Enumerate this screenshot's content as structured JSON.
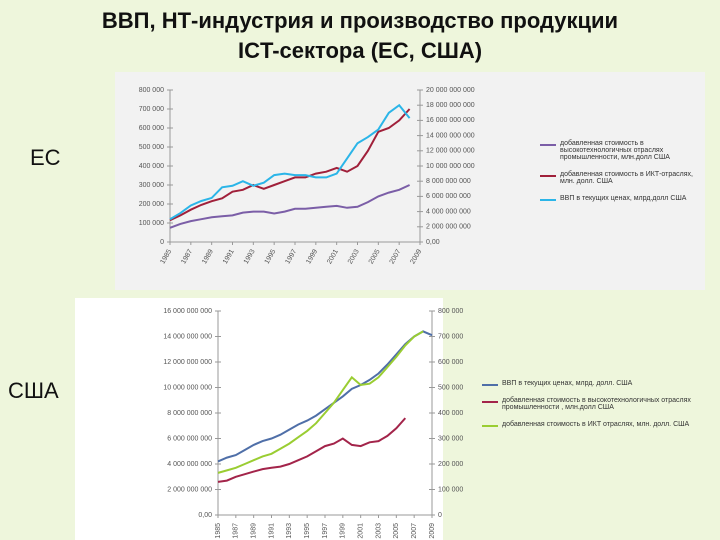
{
  "title": [
    "ВВП, НТ-индустрия  и производство продукции",
    "ICT-сектора (ЕС, США)"
  ],
  "chart_data": [
    {
      "type": "line",
      "region": "ЕС",
      "x": [
        1985,
        1986,
        1987,
        1988,
        1989,
        1990,
        1991,
        1992,
        1993,
        1994,
        1995,
        1996,
        1997,
        1998,
        1999,
        2000,
        2001,
        2002,
        2003,
        2004,
        2005,
        2006,
        2007,
        2008,
        2009
      ],
      "xlim": [
        1985,
        2009
      ],
      "xticks": [
        1985,
        1987,
        1989,
        1991,
        1993,
        1995,
        1997,
        1999,
        2001,
        2003,
        2005,
        2007,
        2009
      ],
      "ylim": [
        0,
        800000
      ],
      "yticks": [
        0,
        {
          "value": 100000,
          "label": "100 000"
        },
        {
          "value": 200000,
          "label": "200 000"
        },
        {
          "value": 300000,
          "label": "300 000"
        },
        {
          "value": 400000,
          "label": "400 000"
        },
        {
          "value": 500000,
          "label": "500 000"
        },
        {
          "value": 600000,
          "label": "600 000"
        },
        {
          "value": 700000,
          "label": "700 000"
        },
        {
          "value": 800000,
          "label": "800 000"
        }
      ],
      "y2lim": [
        0,
        20000000000
      ],
      "y2ticks": [
        {
          "value": 0,
          "label": "0,00"
        },
        {
          "value": 2000000000,
          "label": "2 000 000 000"
        },
        {
          "value": 4000000000,
          "label": "4 000 000 000"
        },
        {
          "value": 6000000000,
          "label": "6 000 000 000"
        },
        {
          "value": 8000000000,
          "label": "8 000 000 000"
        },
        {
          "value": 10000000000,
          "label": "10 000 000 000"
        },
        {
          "value": 12000000000,
          "label": "12 000 000 000"
        },
        {
          "value": 14000000000,
          "label": "14 000 000 000"
        },
        {
          "value": 16000000000,
          "label": "16 000 000 000"
        },
        {
          "value": 18000000000,
          "label": "18 000 000 000"
        },
        {
          "value": 20000000000,
          "label": "20 000 000 000"
        }
      ],
      "grid": false,
      "series": [
        {
          "name": "добавленная стоимость в высокотехнологичных отраслях промышленности, млн.долл США",
          "color": "#7b5ea7",
          "values": [
            75000,
            95000,
            110000,
            120000,
            130000,
            135000,
            140000,
            155000,
            160000,
            160000,
            150000,
            160000,
            175000,
            175000,
            180000,
            185000,
            190000,
            180000,
            185000,
            210000,
            240000,
            260000,
            275000,
            300000,
            null
          ]
        },
        {
          "name": "добавленная стоимость в ИКТ-отраслях, млн. долл. США",
          "color": "#a0203a",
          "values": [
            115000,
            140000,
            170000,
            195000,
            215000,
            230000,
            265000,
            275000,
            300000,
            280000,
            300000,
            320000,
            340000,
            340000,
            360000,
            370000,
            390000,
            370000,
            400000,
            480000,
            580000,
            600000,
            640000,
            700000,
            null
          ]
        },
        {
          "name": "ВВП в текущих ценах, млрд.долл США",
          "color": "#2bb5e8",
          "axis": "y2",
          "values": [
            3000000000,
            3800000000,
            4800000000,
            5400000000,
            5800000000,
            7200000000,
            7400000000,
            8000000000,
            7400000000,
            7800000000,
            8800000000,
            9000000000,
            8800000000,
            8800000000,
            8500000000,
            8500000000,
            9000000000,
            11000000000,
            13000000000,
            13800000000,
            14800000000,
            17000000000,
            18000000000,
            16300000000,
            null
          ]
        }
      ]
    },
    {
      "type": "line",
      "region": "США",
      "x": [
        1985,
        1986,
        1987,
        1988,
        1989,
        1990,
        1991,
        1992,
        1993,
        1994,
        1995,
        1996,
        1997,
        1998,
        1999,
        2000,
        2001,
        2002,
        2003,
        2004,
        2005,
        2006,
        2007,
        2008,
        2009
      ],
      "xlim": [
        1985,
        2009
      ],
      "xticks": [
        1985,
        1987,
        1989,
        1991,
        1993,
        1995,
        1997,
        1999,
        2001,
        2003,
        2005,
        2007,
        2009
      ],
      "ylim": [
        0,
        16000000000
      ],
      "yticks": [
        {
          "value": 0,
          "label": "0,00"
        },
        {
          "value": 2000000000,
          "label": "2 000 000 000"
        },
        {
          "value": 4000000000,
          "label": "4 000 000 000"
        },
        {
          "value": 6000000000,
          "label": "6 000 000 000"
        },
        {
          "value": 8000000000,
          "label": "8 000 000 000"
        },
        {
          "value": 10000000000,
          "label": "10 000 000 000"
        },
        {
          "value": 12000000000,
          "label": "12 000 000 000"
        },
        {
          "value": 14000000000,
          "label": "14 000 000 000"
        },
        {
          "value": 16000000000,
          "label": "16 000 000 000"
        }
      ],
      "y2lim": [
        0,
        800000
      ],
      "y2ticks": [
        0,
        {
          "value": 100000,
          "label": "100 000"
        },
        {
          "value": 200000,
          "label": "200 000"
        },
        {
          "value": 300000,
          "label": "300 000"
        },
        {
          "value": 400000,
          "label": "400 000"
        },
        {
          "value": 500000,
          "label": "500 000"
        },
        {
          "value": 600000,
          "label": "600 000"
        },
        {
          "value": 700000,
          "label": "700 000"
        },
        {
          "value": 800000,
          "label": "800 000"
        }
      ],
      "grid": false,
      "series": [
        {
          "name": "ВВП в текущих ценах, млрд. долл. США",
          "color": "#4f6fa8",
          "values": [
            4200000000,
            4500000000,
            4700000000,
            5100000000,
            5500000000,
            5800000000,
            6000000000,
            6300000000,
            6700000000,
            7100000000,
            7400000000,
            7800000000,
            8300000000,
            8800000000,
            9300000000,
            9900000000,
            10200000000,
            10600000000,
            11100000000,
            11800000000,
            12600000000,
            13400000000,
            14000000000,
            14400000000,
            14100000000
          ]
        },
        {
          "name": "добавленная стоимость в высокотехнологичных отраслях промышленности , млн.долл США",
          "color": "#a3244a",
          "axis": "y2",
          "values": [
            130000,
            135000,
            150000,
            160000,
            170000,
            180000,
            185000,
            190000,
            200000,
            215000,
            230000,
            250000,
            270000,
            280000,
            300000,
            275000,
            270000,
            285000,
            290000,
            310000,
            340000,
            380000,
            null,
            null,
            null
          ]
        },
        {
          "name": "добавленная стоимость в ИКТ отраслях, млн. долл. США",
          "color": "#9acd32",
          "axis": "y2",
          "values": [
            165000,
            175000,
            185000,
            200000,
            215000,
            230000,
            240000,
            260000,
            280000,
            305000,
            330000,
            360000,
            400000,
            440000,
            490000,
            540000,
            510000,
            515000,
            540000,
            580000,
            620000,
            665000,
            700000,
            720000,
            null
          ]
        }
      ]
    }
  ]
}
